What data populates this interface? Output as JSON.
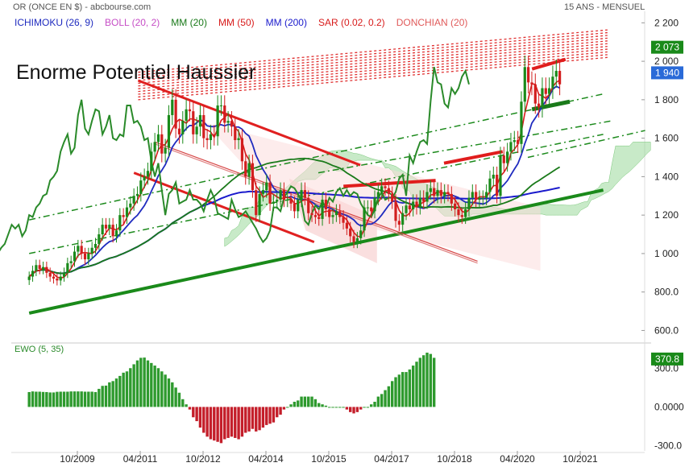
{
  "header": {
    "symbol": "OR (ONCE EN $) - abcbourse.com",
    "period": "15 ANS - MENSUEL"
  },
  "legend": [
    {
      "label": "ICHIMOKU (26, 9)",
      "color": "#1f2bbf"
    },
    {
      "label": "BOLL (20, 2)",
      "color": "#c64dc6"
    },
    {
      "label": "MM (20)",
      "color": "#1a7a1a"
    },
    {
      "label": "MM (50)",
      "color": "#d81b1b"
    },
    {
      "label": "MM (200)",
      "color": "#1a1acc"
    },
    {
      "label": "SAR (0.02, 0.2)",
      "color": "#d81b1b"
    },
    {
      "label": "DONCHIAN (20)",
      "color": "#e05a5a"
    }
  ],
  "annotation": "Enorme Potentiel Haussier",
  "chart_data": [
    {
      "type": "candlestick",
      "title": "OR (ONCE EN $)",
      "x_tick_labels": [
        "10/2009",
        "04/2011",
        "10/2012",
        "04/2014",
        "10/2015",
        "04/2017",
        "10/2018",
        "04/2020",
        "10/2021"
      ],
      "y_tick_labels": [
        "600.0",
        "800.0",
        "1 000",
        "1 200",
        "1 400",
        "1 600",
        "1 800",
        "2 000",
        "2 200"
      ],
      "y_ticks": [
        600,
        800,
        1000,
        1200,
        1400,
        1600,
        1800,
        2000,
        2200
      ],
      "ylim": [
        560,
        2260
      ],
      "price_labels": [
        {
          "text": "2 073",
          "value": 2073,
          "color": "#1a8a1a"
        },
        {
          "text": "1 940",
          "value": 1940,
          "color": "#2a6ad8"
        }
      ],
      "x_start": 2008.6,
      "x_step": 0.0833,
      "close": [
        880,
        910,
        940,
        920,
        930,
        900,
        880,
        870,
        860,
        880,
        900,
        950,
        960,
        1010,
        1040,
        1000,
        970,
        1000,
        1030,
        1050,
        1100,
        1150,
        1130,
        1150,
        1090,
        1120,
        1200,
        1190,
        1240,
        1260,
        1300,
        1310,
        1380,
        1400,
        1430,
        1530,
        1580,
        1620,
        1520,
        1550,
        1720,
        1800,
        1650,
        1620,
        1690,
        1750,
        1740,
        1620,
        1660,
        1720,
        1600,
        1590,
        1620,
        1610,
        1770,
        1770,
        1680,
        1690,
        1660,
        1590,
        1600,
        1480,
        1400,
        1470,
        1330,
        1200,
        1310,
        1330,
        1370,
        1260,
        1270,
        1280,
        1330,
        1280,
        1280,
        1260,
        1220,
        1280,
        1330,
        1290,
        1210,
        1200,
        1190,
        1180,
        1280,
        1230,
        1190,
        1200,
        1220,
        1190,
        1160,
        1130,
        1090,
        1060,
        1080,
        1120,
        1240,
        1240,
        1220,
        1290,
        1320,
        1350,
        1340,
        1310,
        1270,
        1170,
        1150,
        1210,
        1250,
        1230,
        1270,
        1240,
        1290,
        1270,
        1320,
        1340,
        1300,
        1330,
        1300,
        1320,
        1310,
        1260,
        1230,
        1200,
        1190,
        1230,
        1290,
        1320,
        1280,
        1290,
        1290,
        1320,
        1390,
        1410,
        1300,
        1510,
        1470,
        1530,
        1580,
        1590,
        1570,
        1790,
        1970,
        1890,
        1880,
        1780,
        1760,
        1860,
        1830,
        1860,
        1920,
        1950,
        1880
      ],
      "resistance_channel": {
        "upper": [
          [
            2011.2,
            1900
          ],
          [
            2016.5,
            1460
          ]
        ],
        "lower": [
          [
            2011.1,
            1420
          ],
          [
            2015.4,
            1060
          ]
        ]
      },
      "support_trendline": [
        [
          2008.6,
          690
        ],
        [
          2022.3,
          1330
        ]
      ],
      "ewo_panel": {
        "label": "EWO (5, 35)",
        "y_tick_labels": [
          "-300.0",
          "0.0000",
          "300.0"
        ],
        "y_ticks": [
          -300,
          0,
          300
        ],
        "ylim": [
          -340,
          420
        ],
        "last_value_label": "370.8",
        "x_start": 2008.6,
        "x_step": 0.0833,
        "values": [
          115,
          120,
          118,
          118,
          116,
          115,
          112,
          112,
          117,
          118,
          118,
          118,
          120,
          120,
          120,
          120,
          118,
          118,
          118,
          115,
          140,
          163,
          165,
          190,
          200,
          220,
          240,
          265,
          275,
          300,
          330,
          360,
          380,
          382,
          360,
          340,
          320,
          300,
          275,
          250,
          220,
          190,
          150,
          110,
          60,
          20,
          -20,
          -80,
          -110,
          -160,
          -200,
          -230,
          -250,
          -260,
          -270,
          -280,
          -250,
          -240,
          -230,
          -240,
          -250,
          -230,
          -200,
          -190,
          -170,
          -190,
          -180,
          -160,
          -140,
          -130,
          -120,
          -80,
          -60,
          -20,
          0,
          20,
          40,
          50,
          80,
          80,
          80,
          80,
          60,
          30,
          20,
          10,
          0,
          0,
          0,
          0,
          0,
          -20,
          -40,
          -50,
          -40,
          -20,
          0,
          0,
          20,
          40,
          80,
          100,
          130,
          160,
          200,
          230,
          250,
          270,
          270,
          290,
          320,
          350,
          380,
          400,
          420,
          410,
          380
        ]
      }
    }
  ]
}
